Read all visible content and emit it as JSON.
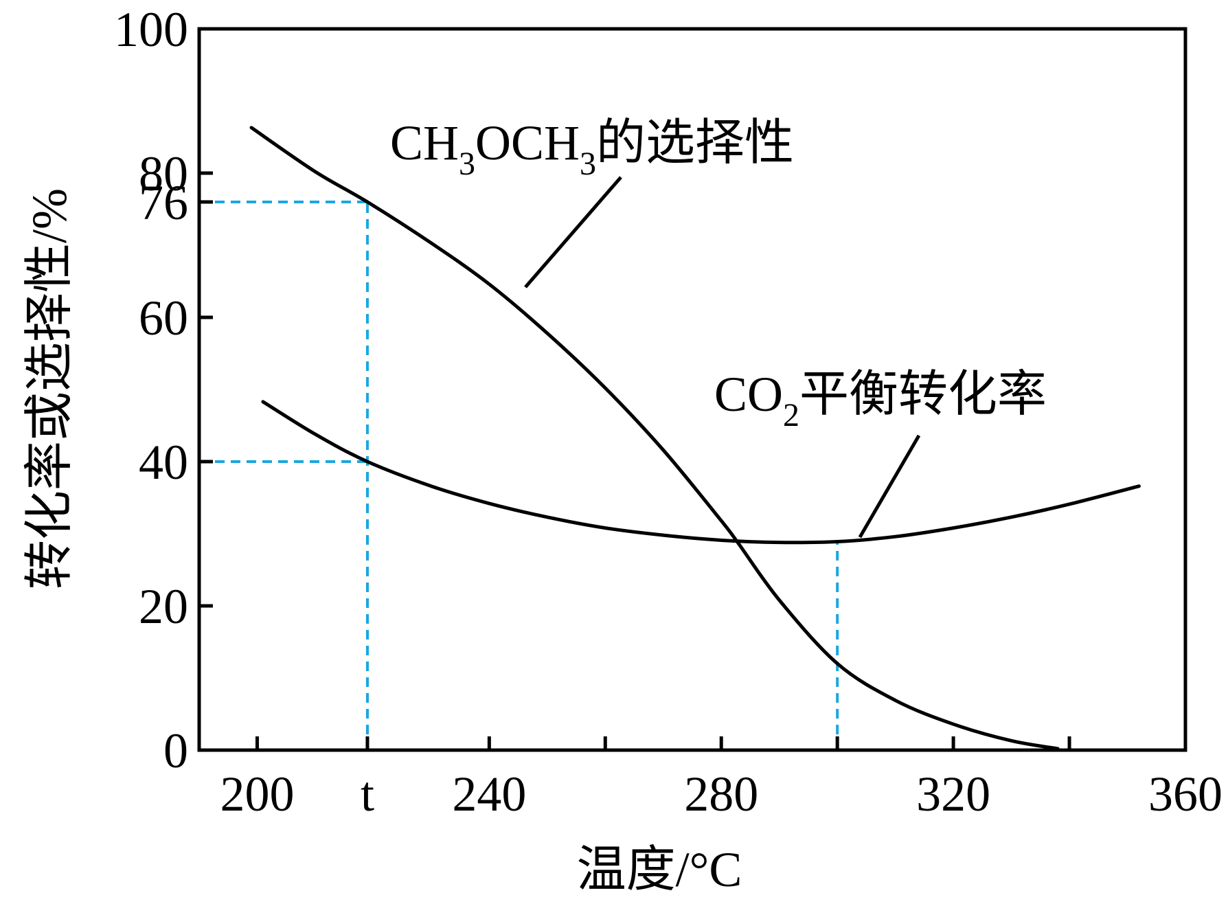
{
  "chart_data": {
    "type": "line",
    "xlabel": "温度/°C",
    "ylabel": "转化率或选择性/%",
    "xlim": [
      190,
      360
    ],
    "ylim": [
      0,
      100
    ],
    "x_ticks": [
      {
        "value": 200,
        "label": "200"
      },
      {
        "value": 219,
        "label": "t"
      },
      {
        "value": 240,
        "label": "240"
      },
      {
        "value": 280,
        "label": "280"
      },
      {
        "value": 320,
        "label": "320"
      },
      {
        "value": 360,
        "label": "360"
      }
    ],
    "x_minor_ticks": [
      260,
      300,
      340
    ],
    "y_ticks": [
      {
        "value": 0,
        "label": "0"
      },
      {
        "value": 20,
        "label": "20"
      },
      {
        "value": 40,
        "label": "40"
      },
      {
        "value": 60,
        "label": "60"
      },
      {
        "value": 76,
        "label": "76"
      },
      {
        "value": 80,
        "label": "80"
      },
      {
        "value": 100,
        "label": "100"
      }
    ],
    "grid": false,
    "series": [
      {
        "name": "CH3OCH3的选择性",
        "label_main": "CH",
        "label_sub1": "3",
        "label_mid": "OCH",
        "label_sub2": "3",
        "label_tail": "的选择性",
        "x": [
          199,
          210,
          219,
          230,
          240,
          250,
          260,
          270,
          280,
          283,
          290,
          300,
          310,
          320,
          330,
          338
        ],
        "y": [
          86.3,
          80.2,
          76,
          70.3,
          64.6,
          57.8,
          50.2,
          41.6,
          31.8,
          28.6,
          20.8,
          12.0,
          6.9,
          3.6,
          1.3,
          0.2
        ]
      },
      {
        "name": "CO2平衡转化率",
        "label_main": "CO",
        "label_sub1": "2",
        "label_tail": "平衡转化率",
        "x": [
          201,
          210,
          219,
          230,
          240,
          250,
          260,
          270,
          280,
          290,
          300,
          310,
          320,
          330,
          340,
          352
        ],
        "y": [
          48.3,
          43.8,
          40,
          36.6,
          34.2,
          32.3,
          30.8,
          29.8,
          29.1,
          28.8,
          28.9,
          29.6,
          30.8,
          32.3,
          34.1,
          36.6
        ]
      }
    ],
    "reference_lines": [
      {
        "x": 219,
        "y_to": 76,
        "h_y": 76,
        "color": "#1aa7e0"
      },
      {
        "x": 219,
        "y_to": 40,
        "h_y": 40,
        "color": "#1aa7e0"
      },
      {
        "x": 300,
        "y_to": 28.9,
        "color": "#1aa7e0"
      }
    ],
    "line_color": "#000000",
    "reference_color": "#1aa7e0"
  }
}
